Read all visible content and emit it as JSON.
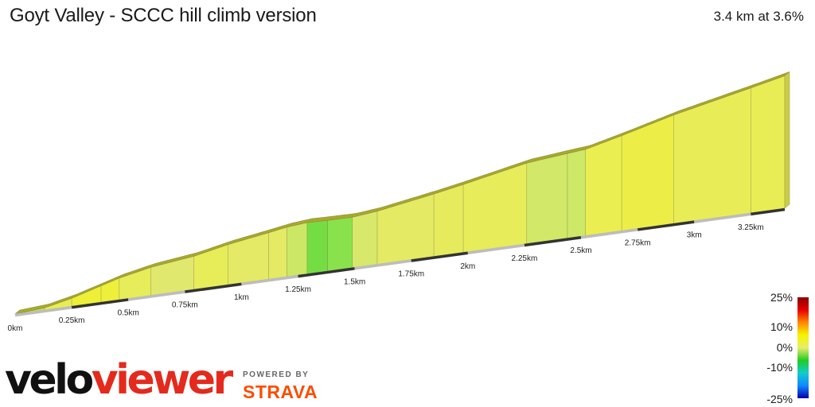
{
  "header": {
    "title": "Goyt Valley - SCCC hill climb version",
    "summary": "3.4 km at 3.6%"
  },
  "chart_data": {
    "type": "area",
    "title": "Goyt Valley - SCCC hill climb version",
    "xlabel": "",
    "ylabel": "",
    "x_unit": "km",
    "xlim": [
      0,
      3.4
    ],
    "x_ticks": [
      0,
      0.25,
      0.5,
      0.75,
      1,
      1.25,
      1.5,
      1.75,
      2,
      2.25,
      2.5,
      2.75,
      3,
      3.25
    ],
    "x_tick_labels": [
      "0km",
      "0.25km",
      "0.5km",
      "0.75km",
      "1km",
      "1.25km",
      "1.5km",
      "1.75km",
      "2km",
      "2.25km",
      "2.5km",
      "2.75km",
      "3km",
      "3.25km"
    ],
    "distance_km": 3.4,
    "average_gradient_percent": 3.6,
    "relative_elevation_m": [
      [
        0,
        0
      ],
      [
        0.13,
        1.5
      ],
      [
        0.25,
        5.8
      ],
      [
        0.38,
        12.0
      ],
      [
        0.46,
        15.8
      ],
      [
        0.6,
        20.5
      ],
      [
        0.79,
        24.3
      ],
      [
        0.94,
        29.4
      ],
      [
        1.12,
        34.0
      ],
      [
        1.2,
        36.2
      ],
      [
        1.29,
        37.5
      ],
      [
        1.38,
        37.1
      ],
      [
        1.49,
        36.9
      ],
      [
        1.6,
        38.8
      ],
      [
        1.85,
        45.7
      ],
      [
        1.98,
        49.7
      ],
      [
        2.26,
        59.0
      ],
      [
        2.44,
        61.9
      ],
      [
        2.52,
        63.1
      ],
      [
        2.68,
        69.5
      ],
      [
        2.91,
        79.4
      ],
      [
        3.25,
        91.4
      ],
      [
        3.4,
        96.9
      ]
    ],
    "gradient_scale": {
      "labels": [
        "25%",
        "10%",
        "0%",
        "-10%",
        "-25%"
      ],
      "colors": [
        "#8b0000",
        "#e60000",
        "#ff8800",
        "#f5f500",
        "#e8ec6a",
        "#22cc22",
        "#11cccc",
        "#1188ff",
        "#0000aa"
      ]
    }
  },
  "branding": {
    "logo_part1": "velo",
    "logo_part2": "viewer",
    "powered_by": "POWERED BY",
    "strava": "STRAVA"
  }
}
